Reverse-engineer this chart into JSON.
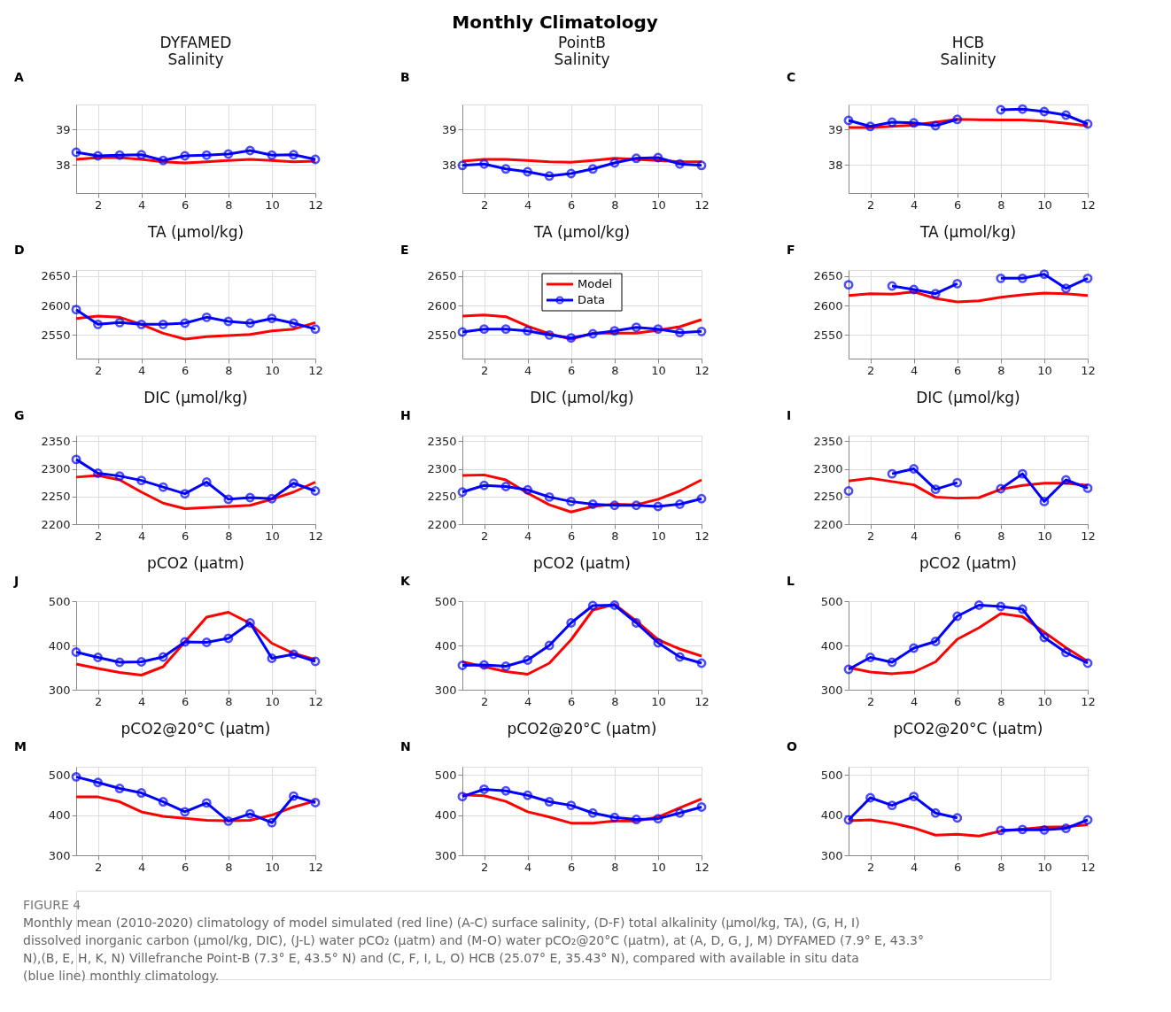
{
  "chart_data": [
    {
      "type": "line",
      "title": "DYFAMED\nSalinity",
      "annotations": [
        "A",
        "Monthly Climatology",
        "FIGURE 4",
        "Monthly mean (2010-2020) climatology of model simulated (red line) (A-C) surface salinity, (D-F) total alkalinity (µmol/kg, TA), (G, H, I) dissolved inorganic carbon (µmol/kg, DIC), (J-L) water pCO₂ (µatm) and (M-O) water pCO₂@20°C (µatm), at (A, D, G, J, M) DYFAMED (7.9° E, 43.3° N),(B, E, H, K, N) Villefranche Point-B (7.3° E, 43.5° N) and (C, F, I, L, O) HCB (25.07° E, 35.43° N), compared with available in situ data (blue line) monthly climatology."
      ],
      "x": [
        1,
        2,
        3,
        4,
        5,
        6,
        7,
        8,
        9,
        10,
        11,
        12
      ],
      "xlim": [
        1,
        12
      ],
      "xticks": [
        2,
        4,
        6,
        8,
        10,
        12
      ],
      "ylim": [
        37.2,
        39.7
      ],
      "yticks": [
        38,
        39
      ],
      "grid": true,
      "series": [
        {
          "color": "#ff0000",
          "marker": "none",
          "values": [
            38.15,
            38.2,
            38.2,
            38.15,
            38.08,
            38.05,
            38.08,
            38.12,
            38.15,
            38.12,
            38.08,
            38.1
          ]
        },
        {
          "color": "#0000ff",
          "marker": "circle",
          "values": [
            38.35,
            38.25,
            38.27,
            38.28,
            38.12,
            38.25,
            38.27,
            38.3,
            38.4,
            38.27,
            38.28,
            38.15
          ]
        }
      ]
    },
    {
      "type": "line",
      "title": "PointB\nSalinity",
      "annotations": [
        "B"
      ],
      "x": [
        1,
        2,
        3,
        4,
        5,
        6,
        7,
        8,
        9,
        10,
        11,
        12
      ],
      "xlim": [
        1,
        12
      ],
      "xticks": [
        2,
        4,
        6,
        8,
        10,
        12
      ],
      "ylim": [
        37.2,
        39.7
      ],
      "yticks": [
        38,
        39
      ],
      "grid": true,
      "series": [
        {
          "color": "#ff0000",
          "marker": "none",
          "values": [
            38.1,
            38.15,
            38.15,
            38.12,
            38.08,
            38.07,
            38.12,
            38.18,
            38.15,
            38.12,
            38.08,
            38.08
          ]
        },
        {
          "color": "#0000ff",
          "marker": "circle",
          "values": [
            37.98,
            38.02,
            37.88,
            37.8,
            37.68,
            37.75,
            37.88,
            38.05,
            38.18,
            38.2,
            38.02,
            37.98
          ]
        }
      ]
    },
    {
      "type": "line",
      "title": "HCB\nSalinity",
      "annotations": [
        "C"
      ],
      "x": [
        1,
        2,
        3,
        4,
        5,
        6,
        7,
        8,
        9,
        10,
        11,
        12
      ],
      "xlim": [
        1,
        12
      ],
      "xticks": [
        2,
        4,
        6,
        8,
        10,
        12
      ],
      "ylim": [
        37.2,
        39.7
      ],
      "yticks": [
        38,
        39
      ],
      "grid": true,
      "series": [
        {
          "color": "#ff0000",
          "marker": "none",
          "values": [
            39.05,
            39.05,
            39.08,
            39.12,
            39.2,
            39.28,
            39.27,
            39.26,
            39.26,
            39.23,
            39.17,
            39.1
          ]
        },
        {
          "color": "#0000ff",
          "marker": "circle",
          "values": [
            39.25,
            39.08,
            39.2,
            39.18,
            39.1,
            39.28,
            null,
            39.55,
            39.57,
            39.5,
            39.4,
            39.15
          ]
        }
      ]
    },
    {
      "type": "line",
      "title": "TA (μmol/kg)",
      "annotations": [
        "D"
      ],
      "x": [
        1,
        2,
        3,
        4,
        5,
        6,
        7,
        8,
        9,
        10,
        11,
        12
      ],
      "xlim": [
        1,
        12
      ],
      "xticks": [
        2,
        4,
        6,
        8,
        10,
        12
      ],
      "ylim": [
        2510,
        2660
      ],
      "yticks": [
        2550,
        2600,
        2650
      ],
      "grid": true,
      "series": [
        {
          "color": "#ff0000",
          "marker": "none",
          "values": [
            2578,
            2582,
            2580,
            2568,
            2553,
            2543,
            2547,
            2549,
            2551,
            2557,
            2560,
            2571
          ]
        },
        {
          "color": "#0000ff",
          "marker": "circle",
          "values": [
            2593,
            2568,
            2571,
            2568,
            2568,
            2570,
            2580,
            2573,
            2570,
            2578,
            2570,
            2560
          ]
        }
      ]
    },
    {
      "type": "line",
      "title": "TA (μmol/kg)",
      "annotations": [
        "E"
      ],
      "legend": "top",
      "x": [
        1,
        2,
        3,
        4,
        5,
        6,
        7,
        8,
        9,
        10,
        11,
        12
      ],
      "xlim": [
        1,
        12
      ],
      "xticks": [
        2,
        4,
        6,
        8,
        10,
        12
      ],
      "ylim": [
        2510,
        2660
      ],
      "yticks": [
        2550,
        2600,
        2650
      ],
      "grid": true,
      "series": [
        {
          "name": "Model",
          "color": "#ff0000",
          "marker": "none",
          "values": [
            2582,
            2584,
            2581,
            2565,
            2552,
            2543,
            2553,
            2553,
            2553,
            2558,
            2564,
            2576
          ]
        },
        {
          "name": "Data",
          "color": "#0000ff",
          "marker": "circle",
          "values": [
            2555,
            2560,
            2560,
            2557,
            2550,
            2545,
            2552,
            2557,
            2563,
            2560,
            2554,
            2556
          ]
        }
      ]
    },
    {
      "type": "line",
      "title": "TA (μmol/kg)",
      "annotations": [
        "F"
      ],
      "x": [
        1,
        2,
        3,
        4,
        5,
        6,
        7,
        8,
        9,
        10,
        11,
        12
      ],
      "xlim": [
        1,
        12
      ],
      "xticks": [
        2,
        4,
        6,
        8,
        10,
        12
      ],
      "ylim": [
        2510,
        2660
      ],
      "yticks": [
        2550,
        2600,
        2650
      ],
      "grid": true,
      "series": [
        {
          "color": "#ff0000",
          "marker": "none",
          "values": [
            2617,
            2620,
            2619,
            2623,
            2612,
            2606,
            2608,
            2614,
            2618,
            2621,
            2620,
            2617
          ]
        },
        {
          "color": "#0000ff",
          "marker": "circle",
          "values": [
            2635,
            null,
            2633,
            2627,
            2620,
            2637,
            null,
            2646,
            2646,
            2653,
            2629,
            2646
          ]
        }
      ]
    },
    {
      "type": "line",
      "title": "DIC (μmol/kg)",
      "annotations": [
        "G"
      ],
      "x": [
        1,
        2,
        3,
        4,
        5,
        6,
        7,
        8,
        9,
        10,
        11,
        12
      ],
      "xlim": [
        1,
        12
      ],
      "xticks": [
        2,
        4,
        6,
        8,
        10,
        12
      ],
      "ylim": [
        2200,
        2360
      ],
      "yticks": [
        2200,
        2250,
        2300,
        2350
      ],
      "grid": true,
      "series": [
        {
          "color": "#ff0000",
          "marker": "none",
          "values": [
            2285,
            2288,
            2280,
            2258,
            2238,
            2228,
            2230,
            2232,
            2234,
            2245,
            2258,
            2276
          ]
        },
        {
          "color": "#0000ff",
          "marker": "circle",
          "values": [
            2317,
            2292,
            2287,
            2279,
            2267,
            2255,
            2276,
            2245,
            2248,
            2246,
            2274,
            2260
          ]
        }
      ]
    },
    {
      "type": "line",
      "title": "DIC (μmol/kg)",
      "annotations": [
        "H"
      ],
      "x": [
        1,
        2,
        3,
        4,
        5,
        6,
        7,
        8,
        9,
        10,
        11,
        12
      ],
      "xlim": [
        1,
        12
      ],
      "xticks": [
        2,
        4,
        6,
        8,
        10,
        12
      ],
      "ylim": [
        2200,
        2360
      ],
      "yticks": [
        2200,
        2250,
        2300,
        2350
      ],
      "grid": true,
      "series": [
        {
          "color": "#ff0000",
          "marker": "none",
          "values": [
            2288,
            2289,
            2280,
            2256,
            2235,
            2222,
            2232,
            2236,
            2235,
            2245,
            2260,
            2280
          ]
        },
        {
          "color": "#0000ff",
          "marker": "circle",
          "values": [
            2258,
            2270,
            2268,
            2262,
            2249,
            2241,
            2236,
            2234,
            2234,
            2232,
            2236,
            2246
          ]
        }
      ]
    },
    {
      "type": "line",
      "title": "DIC (μmol/kg)",
      "annotations": [
        "I"
      ],
      "x": [
        1,
        2,
        3,
        4,
        5,
        6,
        7,
        8,
        9,
        10,
        11,
        12
      ],
      "xlim": [
        1,
        12
      ],
      "xticks": [
        2,
        4,
        6,
        8,
        10,
        12
      ],
      "ylim": [
        2200,
        2360
      ],
      "yticks": [
        2200,
        2250,
        2300,
        2350
      ],
      "grid": true,
      "series": [
        {
          "color": "#ff0000",
          "marker": "none",
          "values": [
            2278,
            2283,
            2277,
            2271,
            2249,
            2247,
            2248,
            2263,
            2270,
            2274,
            2274,
            2270
          ]
        },
        {
          "color": "#0000ff",
          "marker": "circle",
          "values": [
            2260,
            null,
            2291,
            2300,
            2263,
            2275,
            null,
            2264,
            2291,
            2241,
            2280,
            2265
          ]
        }
      ]
    },
    {
      "type": "line",
      "title": "pCO2 (μatm)",
      "annotations": [
        "J"
      ],
      "x": [
        1,
        2,
        3,
        4,
        5,
        6,
        7,
        8,
        9,
        10,
        11,
        12
      ],
      "xlim": [
        1,
        12
      ],
      "xticks": [
        2,
        4,
        6,
        8,
        10,
        12
      ],
      "ylim": [
        300,
        500
      ],
      "yticks": [
        300,
        400,
        500
      ],
      "grid": true,
      "series": [
        {
          "color": "#ff0000",
          "marker": "none",
          "values": [
            358,
            348,
            339,
            333,
            352,
            408,
            464,
            475,
            450,
            405,
            382,
            368
          ]
        },
        {
          "color": "#0000ff",
          "marker": "circle",
          "values": [
            385,
            373,
            362,
            363,
            374,
            408,
            407,
            416,
            451,
            371,
            380,
            364
          ]
        }
      ]
    },
    {
      "type": "line",
      "title": "pCO2 (μatm)",
      "annotations": [
        "K"
      ],
      "x": [
        1,
        2,
        3,
        4,
        5,
        6,
        7,
        8,
        9,
        10,
        11,
        12
      ],
      "xlim": [
        1,
        12
      ],
      "xticks": [
        2,
        4,
        6,
        8,
        10,
        12
      ],
      "ylim": [
        300,
        500
      ],
      "yticks": [
        300,
        400,
        500
      ],
      "grid": true,
      "series": [
        {
          "color": "#ff0000",
          "marker": "none",
          "values": [
            363,
            352,
            341,
            335,
            360,
            413,
            480,
            493,
            455,
            413,
            392,
            376
          ]
        },
        {
          "color": "#0000ff",
          "marker": "circle",
          "values": [
            355,
            356,
            353,
            367,
            400,
            451,
            490,
            491,
            451,
            406,
            374,
            360
          ]
        }
      ]
    },
    {
      "type": "line",
      "title": "pCO2 (μatm)",
      "annotations": [
        "L"
      ],
      "x": [
        1,
        2,
        3,
        4,
        5,
        6,
        7,
        8,
        9,
        10,
        11,
        12
      ],
      "xlim": [
        1,
        12
      ],
      "xticks": [
        2,
        4,
        6,
        8,
        10,
        12
      ],
      "ylim": [
        300,
        500
      ],
      "yticks": [
        300,
        400,
        500
      ],
      "grid": true,
      "series": [
        {
          "color": "#ff0000",
          "marker": "none",
          "values": [
            350,
            340,
            336,
            340,
            363,
            414,
            440,
            472,
            465,
            430,
            395,
            364
          ]
        },
        {
          "color": "#0000ff",
          "marker": "circle",
          "values": [
            346,
            373,
            362,
            394,
            409,
            466,
            491,
            488,
            482,
            418,
            384,
            360
          ]
        }
      ]
    },
    {
      "type": "line",
      "title": "pCO2@20°C (μatm)",
      "annotations": [
        "M"
      ],
      "x": [
        1,
        2,
        3,
        4,
        5,
        6,
        7,
        8,
        9,
        10,
        11,
        12
      ],
      "xlim": [
        1,
        12
      ],
      "xticks": [
        2,
        4,
        6,
        8,
        10,
        12
      ],
      "ylim": [
        300,
        520
      ],
      "yticks": [
        300,
        400,
        500
      ],
      "grid": true,
      "series": [
        {
          "color": "#ff0000",
          "marker": "none",
          "values": [
            445,
            445,
            433,
            408,
            397,
            392,
            387,
            386,
            387,
            400,
            420,
            435
          ]
        },
        {
          "color": "#0000ff",
          "marker": "circle",
          "values": [
            495,
            481,
            466,
            455,
            433,
            408,
            430,
            385,
            403,
            381,
            447,
            431
          ]
        }
      ]
    },
    {
      "type": "line",
      "title": "pCO2@20°C (μatm)",
      "annotations": [
        "N"
      ],
      "x": [
        1,
        2,
        3,
        4,
        5,
        6,
        7,
        8,
        9,
        10,
        11,
        12
      ],
      "xlim": [
        1,
        12
      ],
      "xticks": [
        2,
        4,
        6,
        8,
        10,
        12
      ],
      "ylim": [
        300,
        520
      ],
      "yticks": [
        300,
        400,
        500
      ],
      "grid": true,
      "series": [
        {
          "color": "#ff0000",
          "marker": "none",
          "values": [
            450,
            448,
            434,
            408,
            395,
            380,
            380,
            385,
            385,
            395,
            418,
            440
          ]
        },
        {
          "color": "#0000ff",
          "marker": "circle",
          "values": [
            446,
            464,
            460,
            449,
            433,
            424,
            405,
            394,
            389,
            391,
            405,
            420
          ]
        }
      ]
    },
    {
      "type": "line",
      "title": "pCO2@20°C (μatm)",
      "annotations": [
        "O"
      ],
      "x": [
        1,
        2,
        3,
        4,
        5,
        6,
        7,
        8,
        9,
        10,
        11,
        12
      ],
      "xlim": [
        1,
        12
      ],
      "xticks": [
        2,
        4,
        6,
        8,
        10,
        12
      ],
      "ylim": [
        300,
        520
      ],
      "yticks": [
        300,
        400,
        500
      ],
      "grid": true,
      "series": [
        {
          "color": "#ff0000",
          "marker": "none",
          "values": [
            386,
            388,
            380,
            368,
            350,
            352,
            348,
            360,
            365,
            370,
            371,
            376
          ]
        },
        {
          "color": "#0000ff",
          "marker": "circle",
          "values": [
            388,
            443,
            424,
            446,
            405,
            393,
            null,
            362,
            364,
            363,
            367,
            388
          ]
        }
      ]
    }
  ]
}
